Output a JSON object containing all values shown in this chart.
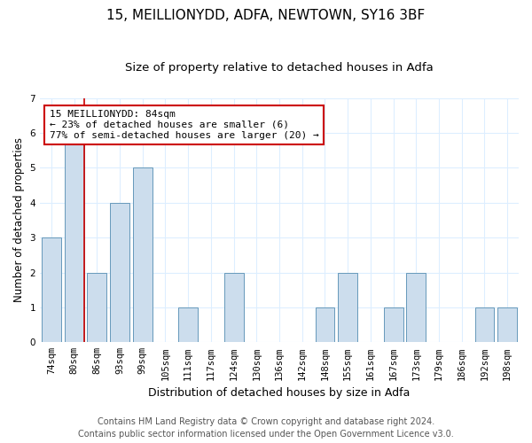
{
  "title1": "15, MEILLIONYDD, ADFA, NEWTOWN, SY16 3BF",
  "title2": "Size of property relative to detached houses in Adfa",
  "xlabel": "Distribution of detached houses by size in Adfa",
  "ylabel": "Number of detached properties",
  "bins": [
    "74sqm",
    "80sqm",
    "86sqm",
    "93sqm",
    "99sqm",
    "105sqm",
    "111sqm",
    "117sqm",
    "124sqm",
    "130sqm",
    "136sqm",
    "142sqm",
    "148sqm",
    "155sqm",
    "161sqm",
    "167sqm",
    "173sqm",
    "179sqm",
    "186sqm",
    "192sqm",
    "198sqm"
  ],
  "values": [
    3,
    6,
    2,
    4,
    5,
    0,
    1,
    0,
    2,
    0,
    0,
    0,
    1,
    2,
    0,
    1,
    2,
    0,
    0,
    1,
    1
  ],
  "bar_color": "#ccdded",
  "bar_edge_color": "#6699bb",
  "grid_color": "#ddeeff",
  "red_line_index": 1,
  "annotation_text": "15 MEILLIONYDD: 84sqm\n← 23% of detached houses are smaller (6)\n77% of semi-detached houses are larger (20) →",
  "annotation_box_color": "#ffffff",
  "annotation_box_edge": "#cc0000",
  "footer1": "Contains HM Land Registry data © Crown copyright and database right 2024.",
  "footer2": "Contains public sector information licensed under the Open Government Licence v3.0.",
  "ylim": [
    0,
    7
  ],
  "title1_fontsize": 11,
  "title2_fontsize": 9.5,
  "xlabel_fontsize": 9,
  "ylabel_fontsize": 8.5,
  "tick_fontsize": 7.5,
  "footer_fontsize": 7
}
